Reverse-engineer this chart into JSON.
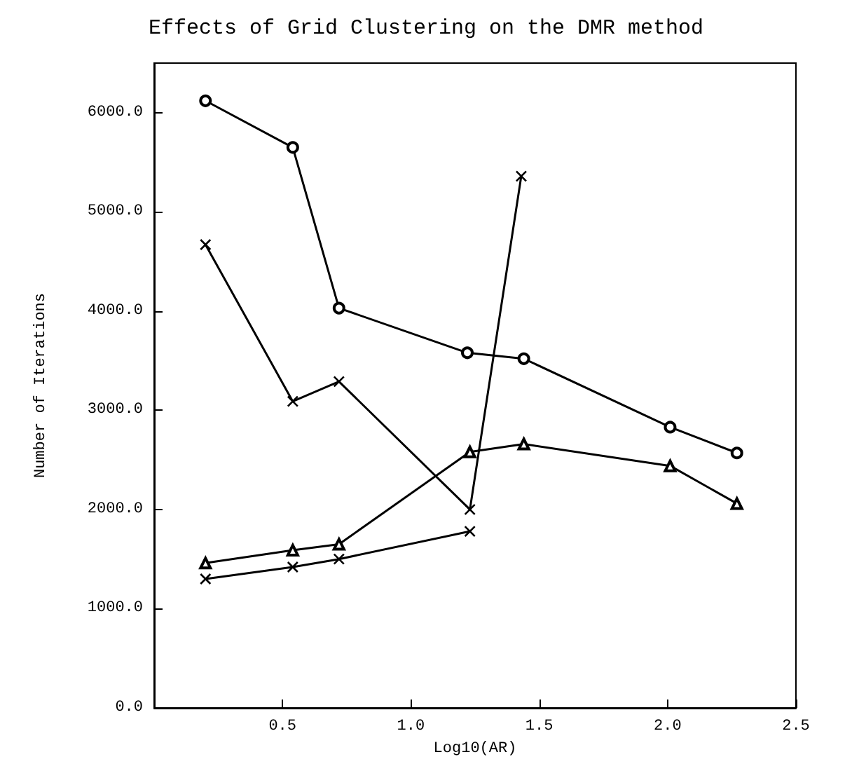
{
  "chart_data": {
    "type": "line",
    "title": "Effects of Grid Clustering on the DMR method",
    "xlabel": "Log10(AR)",
    "ylabel": "Number of Iterations",
    "xlim": [
      0,
      2.5
    ],
    "xticks": [
      0.5,
      {
        "value": 1,
        "label": "1.0"
      },
      1.5,
      {
        "value": 2,
        "label": "2.0"
      },
      2.5
    ],
    "ylim": [
      0,
      6500
    ],
    "yticks": [
      {
        "value": 0,
        "label": "0.0"
      },
      {
        "value": 1000,
        "label": "1000.0"
      },
      {
        "value": 2000,
        "label": "2000.0"
      },
      {
        "value": 3000,
        "label": "3000.0"
      },
      {
        "value": 4000,
        "label": "4000.0"
      },
      {
        "value": 5000,
        "label": "5000.0"
      },
      {
        "value": 6000,
        "label": "6000.0"
      }
    ],
    "grid": false,
    "line_style": "solid",
    "series": [
      {
        "color": "#000000",
        "marker": "circle",
        "x": [
          0.2,
          0.54,
          0.72,
          1.22,
          1.44,
          2.01,
          2.27
        ],
        "values": [
          6120,
          5650,
          4030,
          3580,
          3520,
          2830,
          2570
        ]
      },
      {
        "color": "#000000",
        "marker": "cross",
        "x": [
          0.2,
          0.54,
          0.72,
          1.23,
          1.43
        ],
        "values": [
          4670,
          3090,
          3290,
          2000,
          5360
        ]
      },
      {
        "color": "#000000",
        "marker": "triangle",
        "x": [
          0.2,
          0.54,
          0.72,
          1.23,
          1.44,
          2.01,
          2.27
        ],
        "values": [
          1460,
          1590,
          1650,
          2580,
          2660,
          2440,
          2060
        ]
      },
      {
        "color": "#000000",
        "marker": "cross",
        "x": [
          0.2,
          0.54,
          0.72,
          1.23
        ],
        "values": [
          1300,
          1420,
          1500,
          1780
        ]
      }
    ]
  }
}
